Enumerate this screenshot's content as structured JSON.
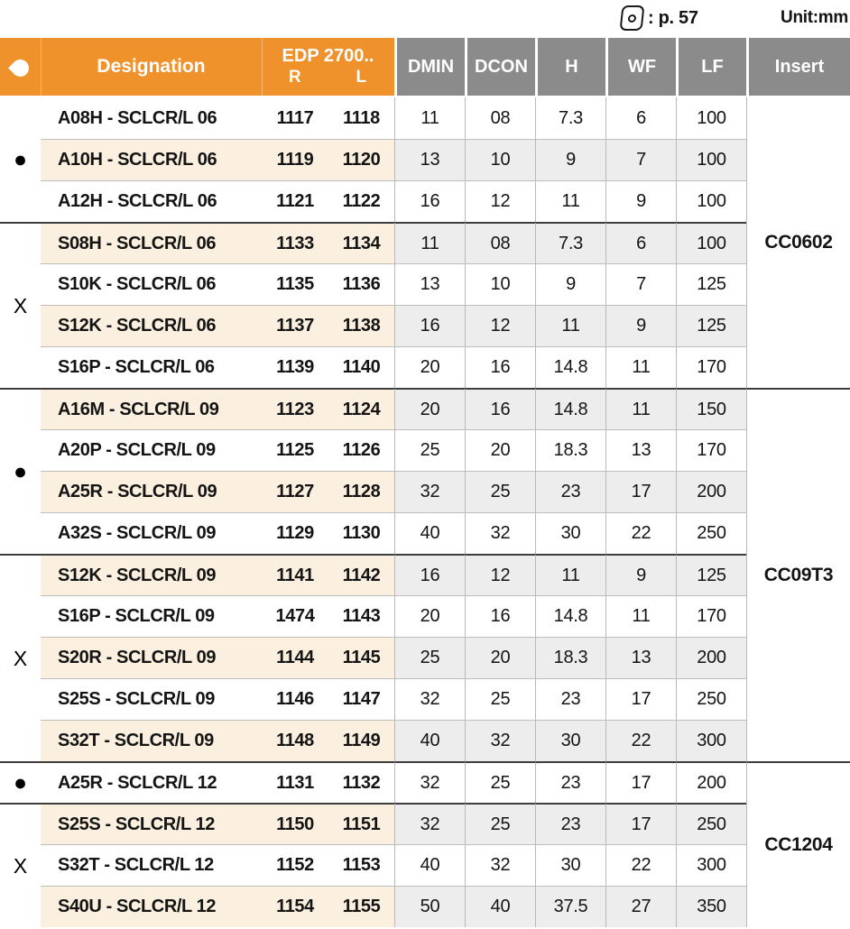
{
  "topbar": {
    "page_ref": ": p. 57",
    "unit": "Unit:mm"
  },
  "colors": {
    "orange": "#F0922B",
    "header_gray": "#8B8B8B",
    "row_peach": "#FBF0DF",
    "row_gray": "#EDEDED",
    "line_light": "#B9B9B9",
    "line_dark": "#3D3D3D"
  },
  "header": {
    "coolant_icon": "droplet-icon",
    "designation": "Designation",
    "edp_title": "EDP 2700..",
    "edp_r": "R",
    "edp_l": "L",
    "dmin": "DMIN",
    "dcon": "DCON",
    "h": "H",
    "wf": "WF",
    "lf": "LF",
    "insert": "Insert"
  },
  "groups": [
    {
      "insert": "CC0602",
      "subgroups": [
        {
          "coolant": "●",
          "rows": [
            {
              "designation": "A08H - SCLCR/L 06",
              "edp_r": "1117",
              "edp_l": "1118",
              "dmin": "11",
              "dcon": "08",
              "h": "7.3",
              "wf": "6",
              "lf": "100"
            },
            {
              "designation": "A10H - SCLCR/L 06",
              "edp_r": "1119",
              "edp_l": "1120",
              "dmin": "13",
              "dcon": "10",
              "h": "9",
              "wf": "7",
              "lf": "100"
            },
            {
              "designation": "A12H - SCLCR/L 06",
              "edp_r": "1121",
              "edp_l": "1122",
              "dmin": "16",
              "dcon": "12",
              "h": "11",
              "wf": "9",
              "lf": "100"
            }
          ]
        },
        {
          "coolant": "X",
          "rows": [
            {
              "designation": "S08H - SCLCR/L 06",
              "edp_r": "1133",
              "edp_l": "1134",
              "dmin": "11",
              "dcon": "08",
              "h": "7.3",
              "wf": "6",
              "lf": "100"
            },
            {
              "designation": "S10K - SCLCR/L 06",
              "edp_r": "1135",
              "edp_l": "1136",
              "dmin": "13",
              "dcon": "10",
              "h": "9",
              "wf": "7",
              "lf": "125"
            },
            {
              "designation": "S12K - SCLCR/L 06",
              "edp_r": "1137",
              "edp_l": "1138",
              "dmin": "16",
              "dcon": "12",
              "h": "11",
              "wf": "9",
              "lf": "125"
            },
            {
              "designation": "S16P - SCLCR/L 06",
              "edp_r": "1139",
              "edp_l": "1140",
              "dmin": "20",
              "dcon": "16",
              "h": "14.8",
              "wf": "11",
              "lf": "170"
            }
          ]
        }
      ]
    },
    {
      "insert": "CC09T3",
      "subgroups": [
        {
          "coolant": "●",
          "rows": [
            {
              "designation": "A16M - SCLCR/L 09",
              "edp_r": "1123",
              "edp_l": "1124",
              "dmin": "20",
              "dcon": "16",
              "h": "14.8",
              "wf": "11",
              "lf": "150"
            },
            {
              "designation": "A20P - SCLCR/L 09",
              "edp_r": "1125",
              "edp_l": "1126",
              "dmin": "25",
              "dcon": "20",
              "h": "18.3",
              "wf": "13",
              "lf": "170"
            },
            {
              "designation": "A25R - SCLCR/L 09",
              "edp_r": "1127",
              "edp_l": "1128",
              "dmin": "32",
              "dcon": "25",
              "h": "23",
              "wf": "17",
              "lf": "200"
            },
            {
              "designation": "A32S - SCLCR/L 09",
              "edp_r": "1129",
              "edp_l": "1130",
              "dmin": "40",
              "dcon": "32",
              "h": "30",
              "wf": "22",
              "lf": "250"
            }
          ]
        },
        {
          "coolant": "X",
          "rows": [
            {
              "designation": "S12K - SCLCR/L 09",
              "edp_r": "1141",
              "edp_l": "1142",
              "dmin": "16",
              "dcon": "12",
              "h": "11",
              "wf": "9",
              "lf": "125"
            },
            {
              "designation": "S16P - SCLCR/L 09",
              "edp_r": "1474",
              "edp_l": "1143",
              "dmin": "20",
              "dcon": "16",
              "h": "14.8",
              "wf": "11",
              "lf": "170"
            },
            {
              "designation": "S20R - SCLCR/L 09",
              "edp_r": "1144",
              "edp_l": "1145",
              "dmin": "25",
              "dcon": "20",
              "h": "18.3",
              "wf": "13",
              "lf": "200"
            },
            {
              "designation": "S25S - SCLCR/L 09",
              "edp_r": "1146",
              "edp_l": "1147",
              "dmin": "32",
              "dcon": "25",
              "h": "23",
              "wf": "17",
              "lf": "250"
            },
            {
              "designation": "S32T - SCLCR/L 09",
              "edp_r": "1148",
              "edp_l": "1149",
              "dmin": "40",
              "dcon": "32",
              "h": "30",
              "wf": "22",
              "lf": "300"
            }
          ]
        }
      ]
    },
    {
      "insert": "CC1204",
      "subgroups": [
        {
          "coolant": "●",
          "rows": [
            {
              "designation": "A25R - SCLCR/L 12",
              "edp_r": "1131",
              "edp_l": "1132",
              "dmin": "32",
              "dcon": "25",
              "h": "23",
              "wf": "17",
              "lf": "200"
            }
          ]
        },
        {
          "coolant": "X",
          "rows": [
            {
              "designation": "S25S - SCLCR/L 12",
              "edp_r": "1150",
              "edp_l": "1151",
              "dmin": "32",
              "dcon": "25",
              "h": "23",
              "wf": "17",
              "lf": "250"
            },
            {
              "designation": "S32T - SCLCR/L 12",
              "edp_r": "1152",
              "edp_l": "1153",
              "dmin": "40",
              "dcon": "32",
              "h": "30",
              "wf": "22",
              "lf": "300"
            },
            {
              "designation": "S40U - SCLCR/L 12",
              "edp_r": "1154",
              "edp_l": "1155",
              "dmin": "50",
              "dcon": "40",
              "h": "37.5",
              "wf": "27",
              "lf": "350"
            }
          ]
        }
      ]
    }
  ]
}
